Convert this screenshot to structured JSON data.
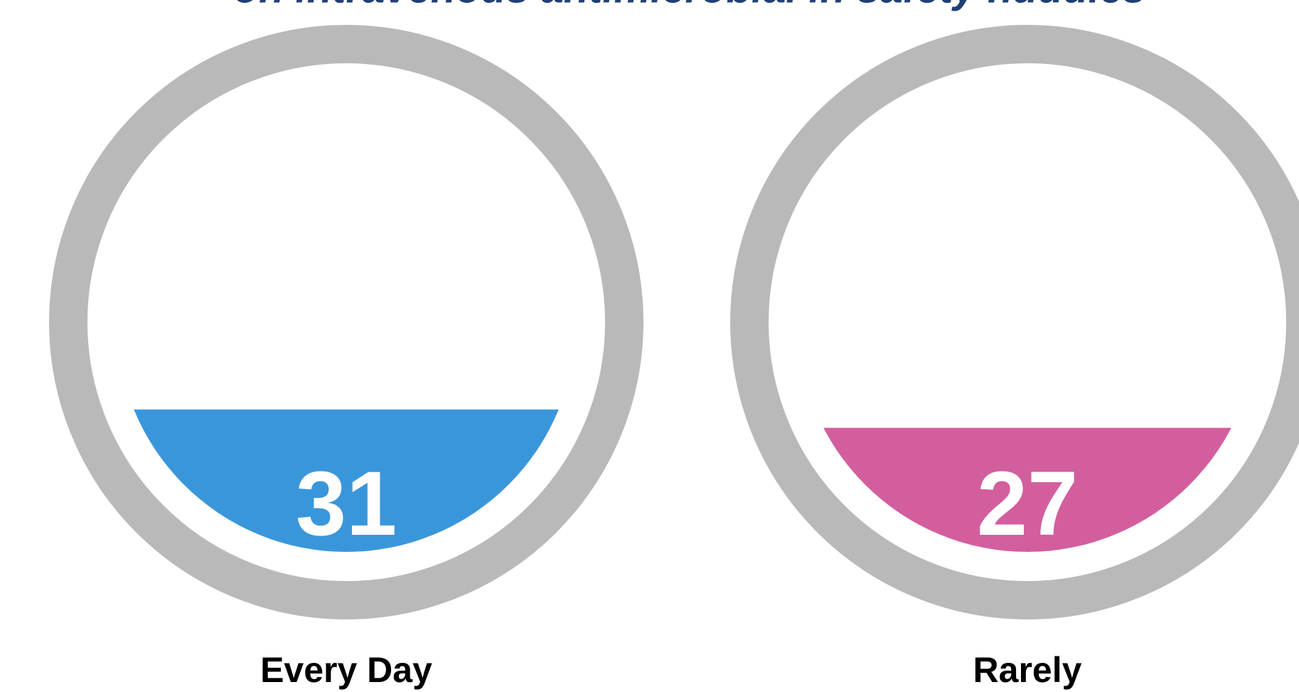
{
  "chart_data": {
    "type": "gauge",
    "title": "on intravenous antimicrobial in safety huddles",
    "categories": [
      "Every Day",
      "Rarely"
    ],
    "values": [
      31,
      27
    ],
    "colors": [
      "#3a96db",
      "#d35e9e"
    ],
    "ylim": [
      0,
      100
    ]
  }
}
